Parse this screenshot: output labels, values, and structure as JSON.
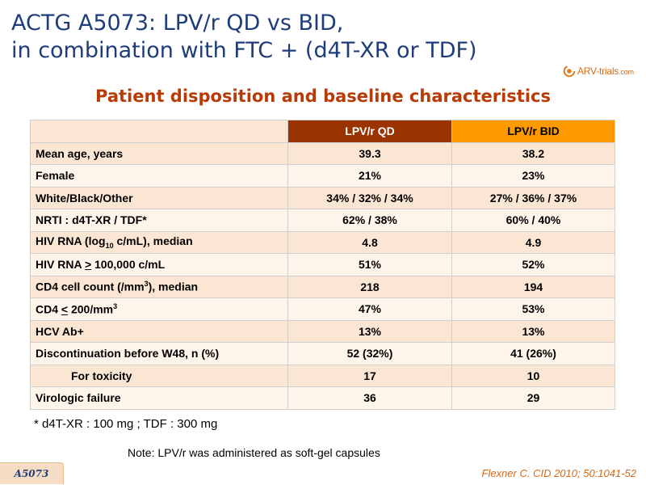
{
  "header": {
    "title_line1": "ACTG A5073: LPV/r QD vs BID,",
    "title_line2": "in combination with FTC + (d4T-XR or TDF)",
    "subtitle": "Patient disposition and baseline characteristics"
  },
  "logo": {
    "text": "ARV-trials",
    "suffix": ".com",
    "icon": "swirl-logo-icon"
  },
  "table": {
    "headers": [
      "",
      "LPV/r QD",
      "LPV/r BID"
    ],
    "rows": [
      {
        "label": "Mean age, years",
        "qd": "39.3",
        "bid": "38.2"
      },
      {
        "label": "Female",
        "qd": "21%",
        "bid": "23%"
      },
      {
        "label": "White/Black/Other",
        "qd": "34% / 32% / 34%",
        "bid": "27% / 36% / 37%"
      },
      {
        "label": "NRTI : d4T-XR / TDF*",
        "qd": "62% / 38%",
        "bid": "60% / 40%"
      },
      {
        "label_pre": "HIV RNA (log",
        "label_sub": "10",
        "label_post": " c/mL), median",
        "qd": "4.8",
        "bid": "4.9"
      },
      {
        "label_pre": "HIV RNA ",
        "label_sym": ">",
        "label_post": " 100,000 c/mL",
        "qd": "51%",
        "bid": "52%"
      },
      {
        "label_pre": "CD4 cell count (/mm",
        "label_sup": "3",
        "label_post": "), median",
        "qd": "218",
        "bid": "194"
      },
      {
        "label_pre": "CD4 ",
        "label_sym": "<",
        "label_mid": " 200/mm",
        "label_sup": "3",
        "qd": "47%",
        "bid": "53%"
      },
      {
        "label": "HCV Ab+",
        "qd": "13%",
        "bid": "13%"
      },
      {
        "label": "Discontinuation before W48, n (%)",
        "qd": "52 (32%)",
        "bid": "41 (26%)"
      },
      {
        "label": "For toxicity",
        "qd": "17",
        "bid": "10"
      },
      {
        "label": "Virologic failure",
        "qd": "36",
        "bid": "29"
      }
    ],
    "colors": {
      "qd_header": "#993300",
      "bid_header": "#ff9900",
      "row_odd": "#fbe6d3",
      "row_even": "#fff4ea"
    }
  },
  "footnote": "* d4T-XR : 100 mg ; TDF : 300 mg",
  "note": "Note: LPV/r was administered as soft-gel capsules",
  "footer": {
    "tag": "A5073",
    "citation": "Flexner C. CID 2010; 50:1041-52"
  }
}
